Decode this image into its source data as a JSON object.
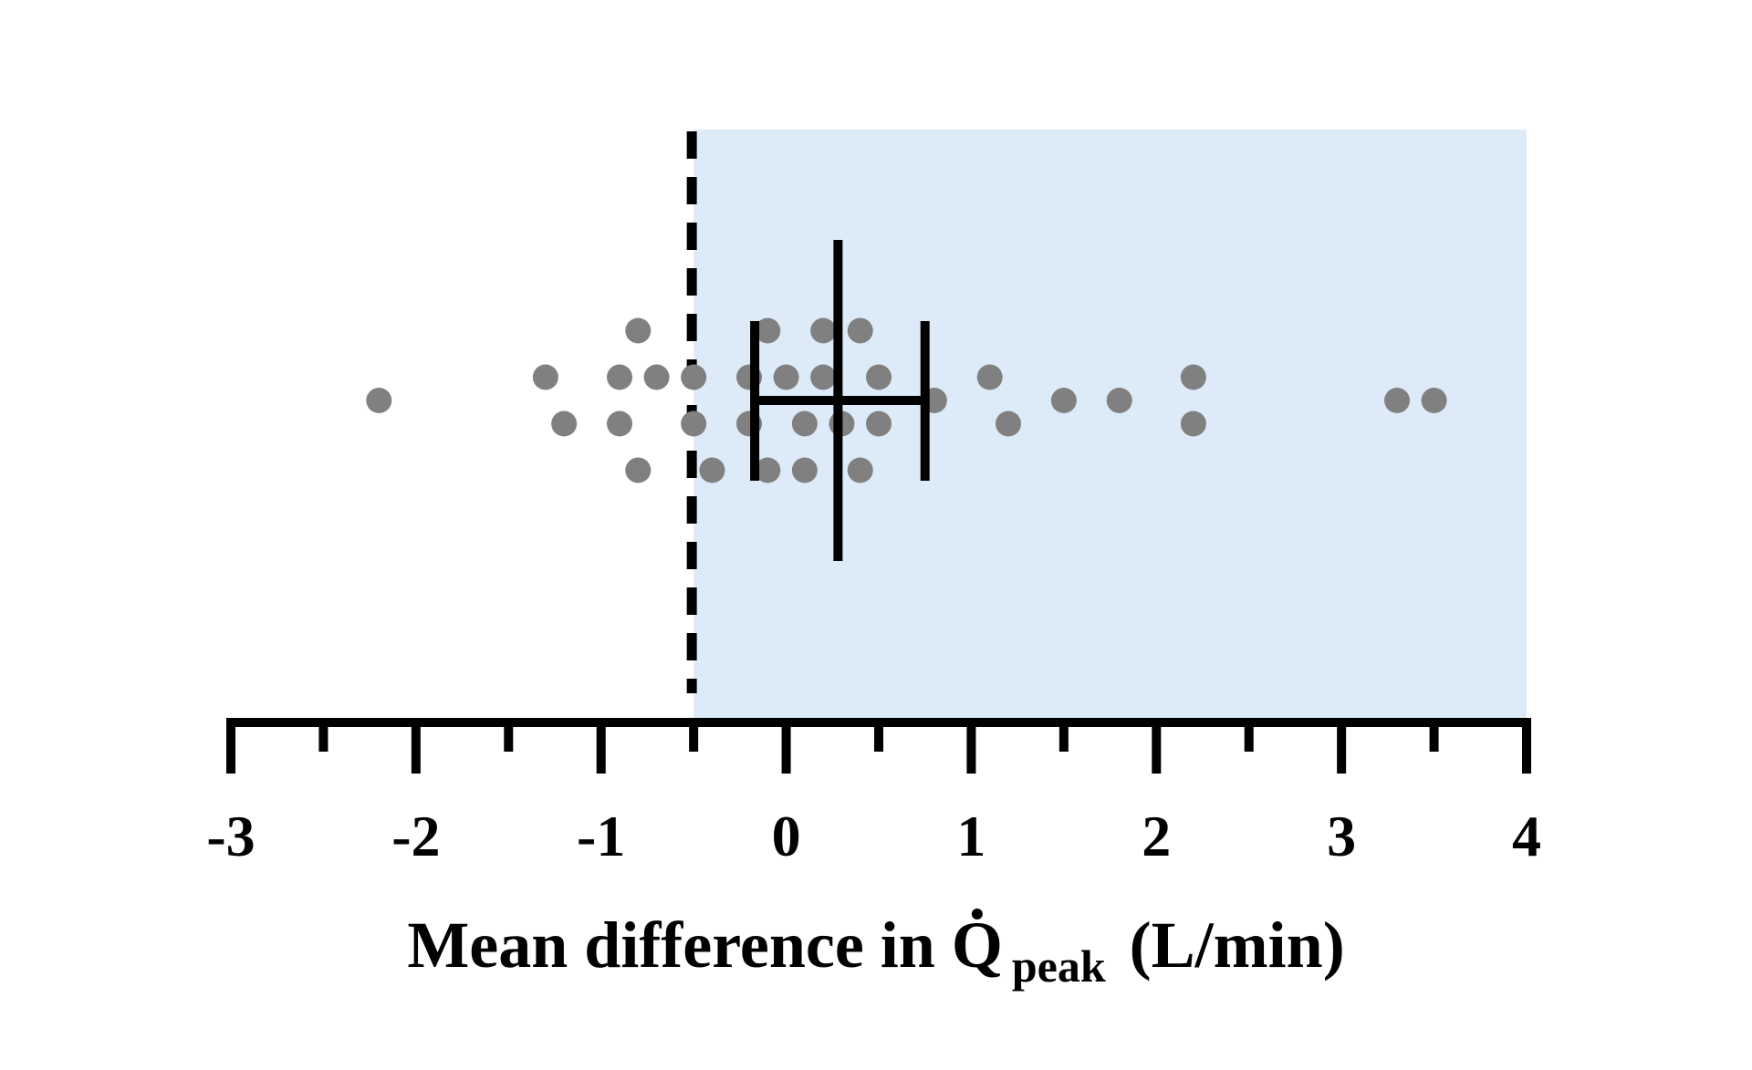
{
  "chart_data": {
    "type": "scatter",
    "title": "",
    "xlabel": {
      "prefix": "Mean difference in ",
      "symbol": "Q",
      "subscript": "peak",
      "suffix": "(L/min)"
    },
    "xlim": [
      -3,
      4
    ],
    "x_ticks": [
      -3,
      -2,
      -1,
      0,
      1,
      2,
      3,
      4
    ],
    "x_minor_ticks": [
      -2.5,
      -1.5,
      -0.5,
      0.5,
      1.5,
      2.5,
      3.5
    ],
    "grid": false,
    "legend": "none",
    "threshold_line": {
      "x": -0.5,
      "style": "dashed",
      "color": "#000000"
    },
    "shaded_region": {
      "x_start": -0.5,
      "x_end": 4,
      "color": "#ddebf8"
    },
    "point_color": "#808080",
    "summary": {
      "mean": 0.28,
      "ci_low": -0.17,
      "ci_high": 0.75,
      "color": "#000000"
    },
    "points": [
      {
        "x": -2.2,
        "row": 0
      },
      {
        "x": -1.3,
        "row": 1
      },
      {
        "x": -1.2,
        "row": -1
      },
      {
        "x": -0.9,
        "row": 1
      },
      {
        "x": -0.9,
        "row": -1
      },
      {
        "x": -0.8,
        "row": 3
      },
      {
        "x": -0.8,
        "row": -3
      },
      {
        "x": -0.7,
        "row": 1
      },
      {
        "x": -0.5,
        "row": 1
      },
      {
        "x": -0.5,
        "row": -1
      },
      {
        "x": -0.4,
        "row": -3
      },
      {
        "x": -0.2,
        "row": 1
      },
      {
        "x": -0.2,
        "row": -1
      },
      {
        "x": -0.1,
        "row": 3
      },
      {
        "x": -0.1,
        "row": -3
      },
      {
        "x": 0.0,
        "row": 1
      },
      {
        "x": 0.1,
        "row": -1
      },
      {
        "x": 0.1,
        "row": -3
      },
      {
        "x": 0.2,
        "row": 3
      },
      {
        "x": 0.2,
        "row": 1
      },
      {
        "x": 0.3,
        "row": -1
      },
      {
        "x": 0.4,
        "row": 3
      },
      {
        "x": 0.4,
        "row": -3
      },
      {
        "x": 0.5,
        "row": 1
      },
      {
        "x": 0.5,
        "row": -1
      },
      {
        "x": 0.8,
        "row": 0
      },
      {
        "x": 1.1,
        "row": 1
      },
      {
        "x": 1.2,
        "row": -1
      },
      {
        "x": 1.5,
        "row": 0
      },
      {
        "x": 1.8,
        "row": 0
      },
      {
        "x": 2.2,
        "row": 1
      },
      {
        "x": 2.2,
        "row": -1
      },
      {
        "x": 3.3,
        "row": 0
      },
      {
        "x": 3.5,
        "row": 0
      }
    ]
  }
}
